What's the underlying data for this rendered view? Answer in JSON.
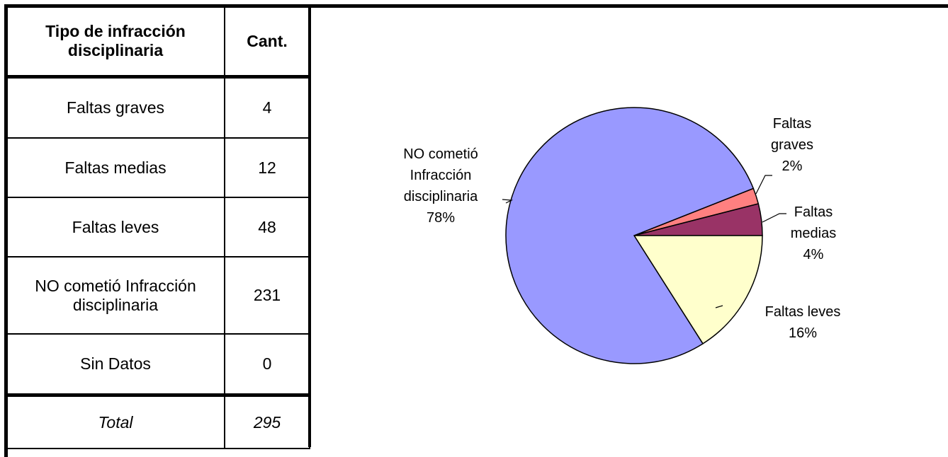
{
  "table": {
    "header": [
      "Tipo de infracción disciplinaria",
      "Cant."
    ],
    "rows": [
      [
        "Faltas graves",
        4
      ],
      [
        "Faltas medias",
        12
      ],
      [
        "Faltas leves",
        48
      ],
      [
        "NO cometió Infracción disciplinaria",
        231
      ],
      [
        "Sin Datos",
        0
      ]
    ],
    "total": [
      "Total",
      295
    ]
  },
  "chart_data": {
    "type": "pie",
    "categories": [
      "Faltas graves",
      "Faltas medias",
      "Faltas leves",
      "NO cometió Infracción disciplinaria"
    ],
    "values": [
      2,
      4,
      16,
      78
    ],
    "value_labels": [
      "2%",
      "4%",
      "16%",
      "78%"
    ],
    "colors": [
      "#ff8080",
      "#993366",
      "#ffffcc",
      "#9999ff"
    ]
  }
}
